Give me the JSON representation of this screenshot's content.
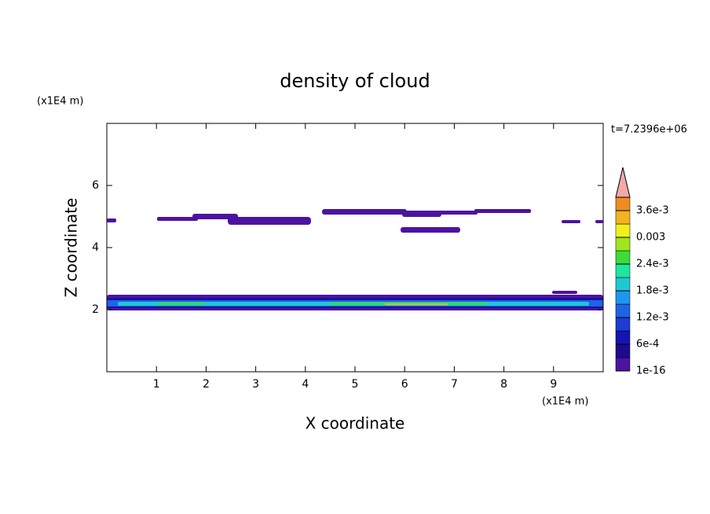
{
  "chart_data": {
    "type": "contour",
    "title": "density of cloud",
    "xlabel": "X coordinate",
    "ylabel": "Z coordinate",
    "x_unit": "(x1E4 m)",
    "y_unit": "(x1E4 m)",
    "time_label": "t=7.2396e+06",
    "xlim": [
      0,
      10
    ],
    "ylim": [
      0,
      8
    ],
    "xticks": [
      1,
      2,
      3,
      4,
      5,
      6,
      7,
      8,
      9
    ],
    "yticks": [
      2,
      4,
      6
    ],
    "colorbar": {
      "clim": [
        0,
        0.0039
      ],
      "ticks": [
        {
          "value": 1e-16,
          "label": "1e-16"
        },
        {
          "value": 0.0006,
          "label": "6e-4"
        },
        {
          "value": 0.0012,
          "label": "1.2e-3"
        },
        {
          "value": 0.0018,
          "label": "1.8e-3"
        },
        {
          "value": 0.0024,
          "label": "2.4e-3"
        },
        0.003,
        {
          "value": 0.0036,
          "label": "3.6e-3"
        }
      ],
      "colors": [
        "#4b14a0",
        "#1e0a8c",
        "#1414b4",
        "#1e3cd2",
        "#1e64e6",
        "#1e96f0",
        "#1ec8d2",
        "#1ee6a0",
        "#3cdc3c",
        "#a0e61e",
        "#f0f01e",
        "#f0b41e",
        "#f08c1e"
      ],
      "extend_color": "#f4a8a8"
    }
  }
}
